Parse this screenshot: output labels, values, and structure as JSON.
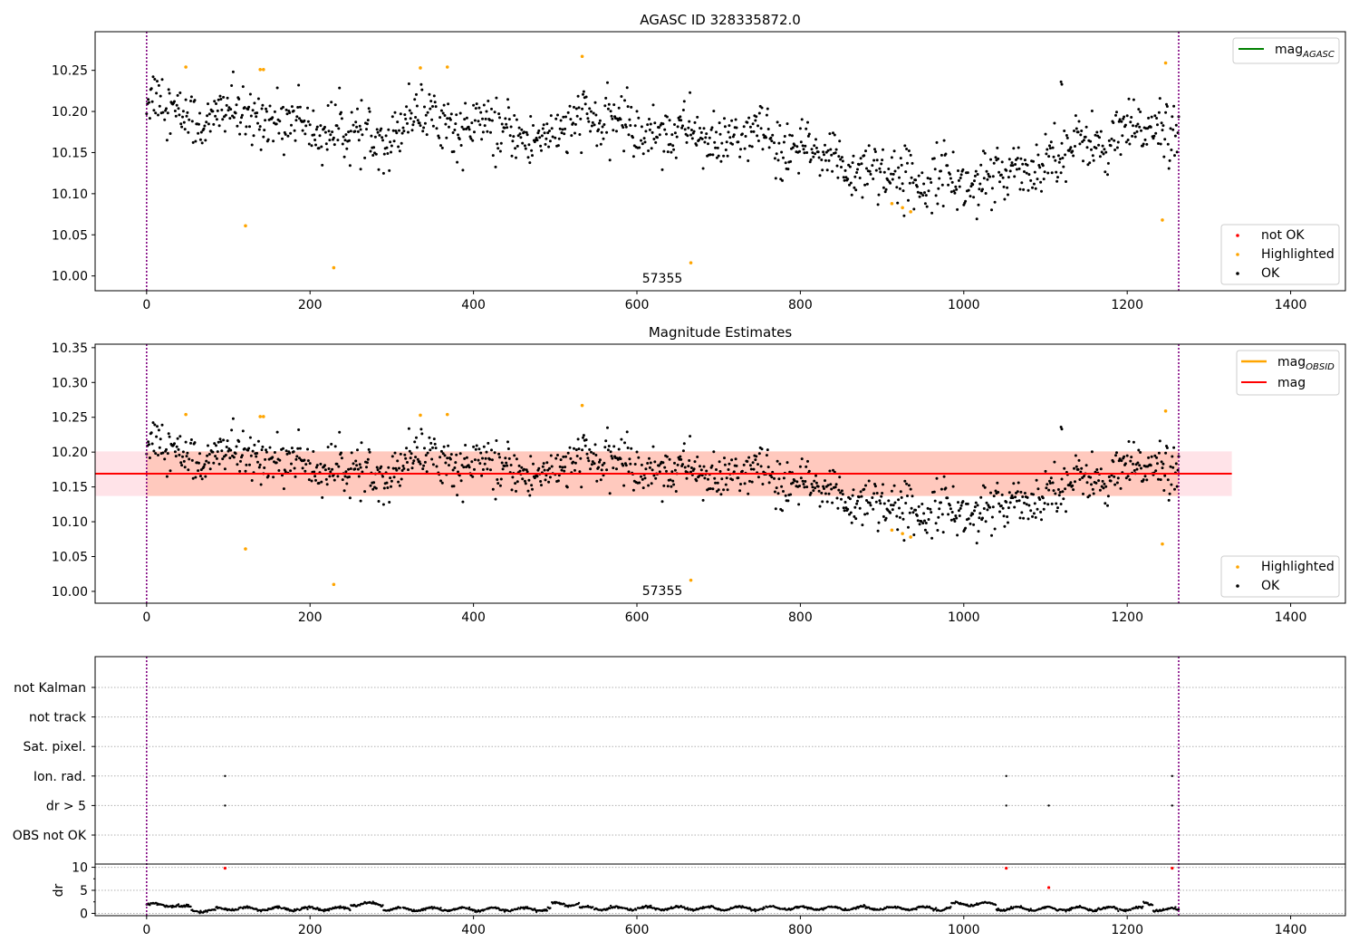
{
  "chart_data": [
    {
      "type": "scatter",
      "title": "AGASC ID 328335872.0",
      "xlim": [
        -63,
        1467
      ],
      "ylim": [
        9.982,
        10.297
      ],
      "x_ticks": [
        0,
        200,
        400,
        600,
        800,
        1000,
        1200,
        1400
      ],
      "y_ticks": [
        10.0,
        10.05,
        10.1,
        10.15,
        10.2,
        10.25
      ],
      "vlines": [
        0,
        1263
      ],
      "vline_color": "#800080",
      "annotation": {
        "text": "57355",
        "x": 630,
        "y": 9.996
      },
      "legend_lines": [
        {
          "label_main": "mag",
          "label_sub": "AGASC",
          "color": "#008000"
        }
      ],
      "legend_points": [
        {
          "label": "not OK",
          "color": "#ff0000"
        },
        {
          "label": "Highlighted",
          "color": "#ffa500"
        },
        {
          "label": "OK",
          "color": "#000000"
        }
      ],
      "highlighted": {
        "color": "#ffa500",
        "x": [
          48,
          121,
          139,
          143,
          229,
          335,
          368,
          533,
          666,
          912,
          925,
          935,
          1243,
          1247
        ],
        "y": [
          10.254,
          10.061,
          10.251,
          10.251,
          10.01,
          10.253,
          10.254,
          10.267,
          10.016,
          10.088,
          10.083,
          10.078,
          10.068,
          10.259
        ]
      },
      "ok_trend": {
        "color": "#000000",
        "x": [
          0,
          30,
          60,
          100,
          140,
          180,
          220,
          260,
          300,
          330,
          360,
          400,
          450,
          500,
          530,
          560,
          600,
          650,
          700,
          750,
          800,
          850,
          900,
          950,
          1000,
          1050,
          1080,
          1110,
          1150,
          1200,
          1240,
          1263
        ],
        "y": [
          10.215,
          10.205,
          10.19,
          10.195,
          10.195,
          10.185,
          10.18,
          10.168,
          10.175,
          10.2,
          10.19,
          10.18,
          10.175,
          10.165,
          10.2,
          10.185,
          10.18,
          10.175,
          10.165,
          10.17,
          10.15,
          10.14,
          10.125,
          10.12,
          10.115,
          10.12,
          10.135,
          10.15,
          10.16,
          10.17,
          10.185,
          10.18
        ]
      }
    },
    {
      "type": "scatter",
      "title": "Magnitude Estimates",
      "xlim": [
        -63,
        1467
      ],
      "ylim": [
        9.983,
        10.355
      ],
      "x_ticks": [
        0,
        200,
        400,
        600,
        800,
        1000,
        1200,
        1400
      ],
      "y_ticks": [
        10.0,
        10.05,
        10.1,
        10.15,
        10.2,
        10.25,
        10.3,
        10.35
      ],
      "vlines": [
        0,
        1263
      ],
      "vline_color": "#800080",
      "annotation": {
        "text": "57355",
        "x": 630,
        "y": 9.996
      },
      "mag_line": {
        "value": 10.169,
        "color": "#ff0000",
        "xrange": [
          -63,
          1328
        ]
      },
      "bands": [
        {
          "from": 10.137,
          "to": 10.201,
          "xrange": [
            -63,
            1328
          ],
          "color": "#ffc0cb",
          "opacity": 0.45
        },
        {
          "from": 10.137,
          "to": 10.201,
          "xrange": [
            0,
            1263
          ],
          "color": "#ffa07a",
          "opacity": 0.38
        }
      ],
      "legend_lines": [
        {
          "label_main": "mag",
          "label_sub": "OBSID",
          "color": "#ffa500"
        },
        {
          "label_main": "mag",
          "label_sub": "",
          "color": "#ff0000"
        }
      ],
      "legend_points": [
        {
          "label": "Highlighted",
          "color": "#ffa500"
        },
        {
          "label": "OK",
          "color": "#000000"
        }
      ]
    },
    {
      "type": "scatter",
      "flag_rows": [
        "not Kalman",
        "not track",
        "Sat. pixel.",
        "Ion. rad.",
        "dr > 5",
        "OBS not OK"
      ],
      "xlim": [
        -63,
        1467
      ],
      "x_ticks": [
        0,
        200,
        400,
        600,
        800,
        1000,
        1200,
        1400
      ],
      "vlines": [
        0,
        1263
      ],
      "vline_color": "#800080",
      "flag_points": [
        {
          "row": "Ion. rad.",
          "x": [
            96,
            1052,
            1255
          ]
        },
        {
          "row": "dr > 5",
          "x": [
            96,
            1052,
            1104,
            1255
          ]
        }
      ],
      "dr_axis": {
        "ylabel": "dr",
        "ylim": [
          -0.5,
          10.7
        ],
        "y_ticks": [
          0,
          5,
          10
        ],
        "outliers": {
          "color": "#ff0000",
          "x": [
            96,
            1052,
            1104,
            1255
          ],
          "y": [
            9.8,
            9.8,
            5.6,
            9.8
          ]
        },
        "segments": [
          {
            "from": 0,
            "to": 40,
            "value": 1.8
          },
          {
            "from": 40,
            "to": 55,
            "value": 1.3
          },
          {
            "from": 55,
            "to": 85,
            "value": 0.6
          },
          {
            "from": 85,
            "to": 250,
            "value": 1.0
          },
          {
            "from": 250,
            "to": 290,
            "value": 2.0
          },
          {
            "from": 290,
            "to": 495,
            "value": 0.9
          },
          {
            "from": 495,
            "to": 530,
            "value": 2.0
          },
          {
            "from": 530,
            "to": 985,
            "value": 1.1
          },
          {
            "from": 985,
            "to": 1040,
            "value": 2.0
          },
          {
            "from": 1040,
            "to": 1220,
            "value": 1.0
          },
          {
            "from": 1220,
            "to": 1232,
            "value": 2.1
          },
          {
            "from": 1232,
            "to": 1263,
            "value": 0.8
          }
        ]
      }
    }
  ]
}
